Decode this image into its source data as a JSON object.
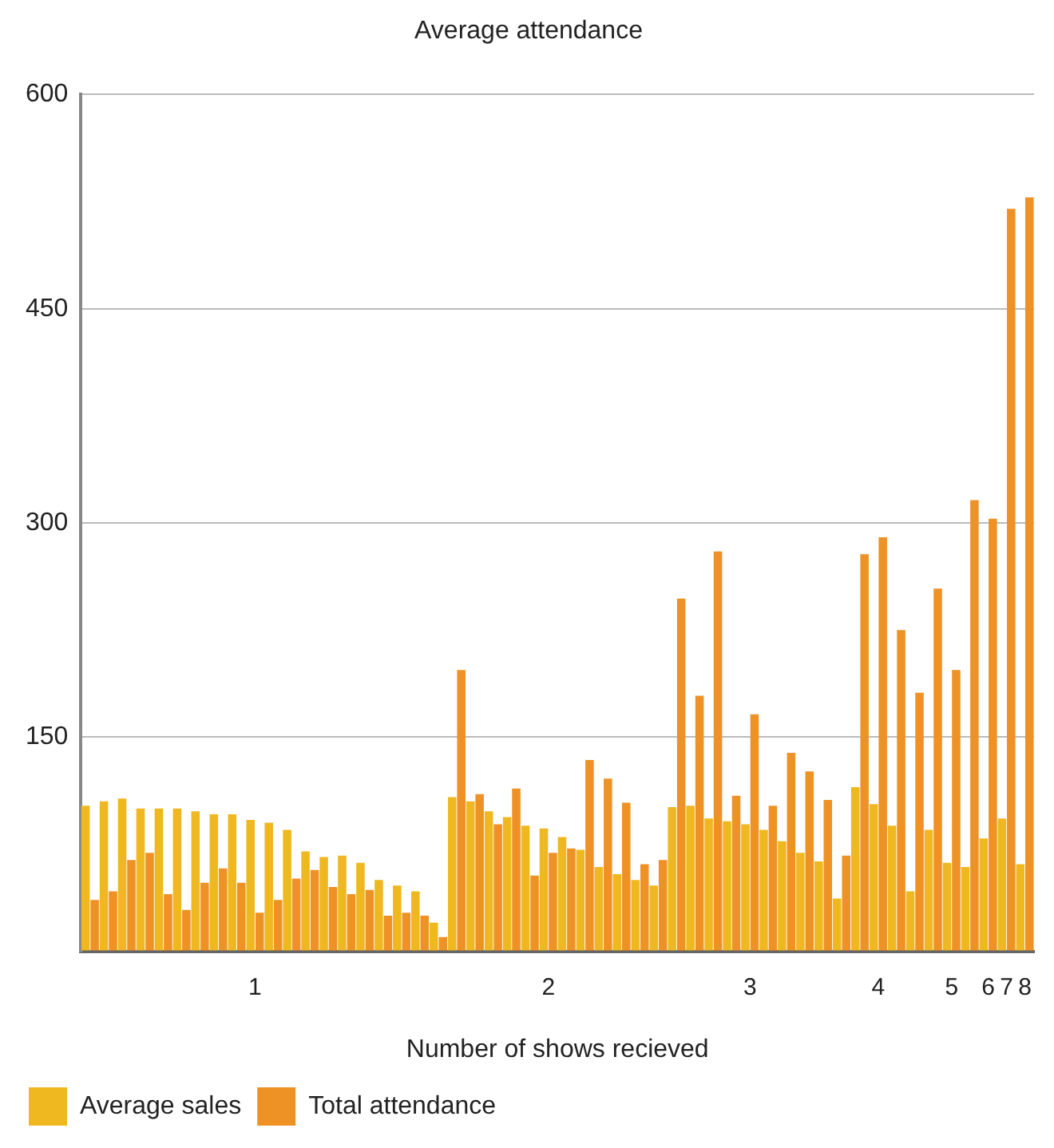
{
  "chart_data": {
    "type": "bar",
    "title": "Average attendance",
    "xlabel": "Number of shows recieved",
    "categories": [
      null,
      null,
      null,
      null,
      null,
      null,
      null,
      null,
      null,
      "1",
      null,
      null,
      null,
      null,
      null,
      null,
      null,
      null,
      null,
      null,
      null,
      null,
      null,
      null,
      null,
      "2",
      null,
      null,
      null,
      null,
      null,
      null,
      null,
      null,
      null,
      null,
      "3",
      null,
      null,
      null,
      null,
      null,
      null,
      "4",
      null,
      null,
      null,
      "5",
      null,
      "6",
      "7",
      "8"
    ],
    "series": [
      {
        "name": "Average sales",
        "color": "#efb820",
        "values": [
          102,
          105,
          107,
          100,
          100,
          100,
          98,
          96,
          96,
          92,
          90,
          85,
          70,
          66,
          67,
          62,
          50,
          46,
          42,
          20,
          108,
          105,
          98,
          94,
          88,
          86,
          80,
          71,
          59,
          54,
          50,
          46,
          101,
          102,
          93,
          91,
          89,
          85,
          77,
          69,
          63,
          37,
          115,
          103,
          88,
          42,
          85,
          62,
          59,
          79,
          93,
          61
        ]
      },
      {
        "name": "Total attendance",
        "color": "#ef9226",
        "values": [
          36,
          42,
          64,
          69,
          40,
          29,
          48,
          58,
          48,
          27,
          36,
          51,
          57,
          45,
          40,
          43,
          25,
          27,
          25,
          10,
          197,
          110,
          89,
          114,
          53,
          69,
          72,
          134,
          121,
          104,
          61,
          64,
          247,
          179,
          280,
          109,
          166,
          102,
          139,
          126,
          106,
          67,
          278,
          290,
          225,
          181,
          254,
          197,
          316,
          303,
          520,
          528
        ]
      }
    ],
    "ylim": [
      0,
      600
    ],
    "yticks": [
      {
        "value": 0,
        "label": null
      },
      150,
      300,
      450,
      600
    ],
    "grid": "y",
    "legend": "bottom left"
  }
}
